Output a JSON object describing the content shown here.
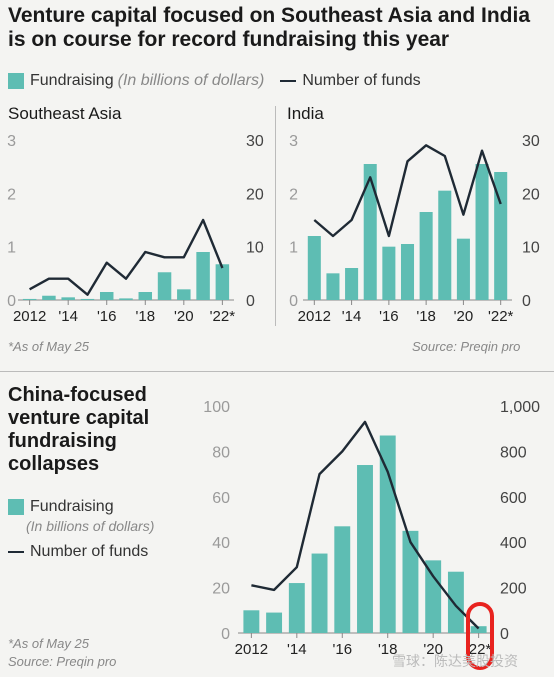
{
  "headline": "Venture capital focused on Southeast Asia and India is on course for record fundraising this year",
  "legend": {
    "fundraising": "Fundraising",
    "fundraising_unit": "(In billions of dollars)",
    "funds": "Number of funds"
  },
  "colors": {
    "bar": "#5ebdb3",
    "line": "#1f2a35",
    "axis": "#888888",
    "highlight": "#e8231f"
  },
  "top_notes": {
    "as_of": "*As of May 25",
    "source": "Source: Preqin pro"
  },
  "china": {
    "title": "China-focused venture capital fundraising collapses",
    "as_of": "*As of May 25",
    "source": "Source: Preqin pro"
  },
  "watermark": "雪球：陈达美股投资",
  "chart_data": [
    {
      "type": "bar",
      "title": "Southeast Asia",
      "x": [
        2012,
        2013,
        2014,
        2015,
        2016,
        2017,
        2018,
        2019,
        2020,
        2021,
        2022
      ],
      "x_tick_labels": [
        "2012",
        "'14",
        "'16",
        "'18",
        "'20",
        "'22*"
      ],
      "left_axis": {
        "range": [
          0,
          3
        ],
        "ticks": [
          "0",
          "1",
          "2",
          "3"
        ]
      },
      "right_axis": {
        "range": [
          0,
          30
        ],
        "ticks": [
          "0",
          "10",
          "20",
          "30"
        ]
      },
      "series": [
        {
          "name": "Fundraising",
          "kind": "bar",
          "axis": "left",
          "values": [
            0.02,
            0.08,
            0.05,
            0.02,
            0.15,
            0.03,
            0.15,
            0.52,
            0.2,
            0.9,
            0.67
          ]
        },
        {
          "name": "Number of funds",
          "kind": "line",
          "axis": "right",
          "values": [
            2,
            4,
            4,
            1,
            7,
            4,
            9,
            8,
            8,
            15,
            6
          ]
        }
      ]
    },
    {
      "type": "bar",
      "title": "India",
      "x": [
        2012,
        2013,
        2014,
        2015,
        2016,
        2017,
        2018,
        2019,
        2020,
        2021,
        2022
      ],
      "x_tick_labels": [
        "2012",
        "'14",
        "'16",
        "'18",
        "'20",
        "'22*"
      ],
      "left_axis": {
        "range": [
          0,
          3
        ],
        "ticks": [
          "0",
          "1",
          "2",
          "3"
        ]
      },
      "right_axis": {
        "range": [
          0,
          30
        ],
        "ticks": [
          "0",
          "10",
          "20",
          "30"
        ]
      },
      "series": [
        {
          "name": "Fundraising",
          "kind": "bar",
          "axis": "left",
          "values": [
            1.2,
            0.5,
            0.6,
            2.55,
            1.0,
            1.05,
            1.65,
            2.05,
            1.15,
            2.55,
            2.4
          ]
        },
        {
          "name": "Number of funds",
          "kind": "line",
          "axis": "right",
          "values": [
            15,
            12,
            15,
            23,
            12,
            26,
            29,
            27,
            16,
            28,
            18
          ]
        }
      ]
    },
    {
      "type": "bar",
      "title": "",
      "x": [
        2012,
        2013,
        2014,
        2015,
        2016,
        2017,
        2018,
        2019,
        2020,
        2021,
        2022
      ],
      "x_tick_labels": [
        "2012",
        "'14",
        "'16",
        "'18",
        "'20",
        "'22*"
      ],
      "left_axis": {
        "range": [
          0,
          100
        ],
        "ticks": [
          "0",
          "20",
          "40",
          "60",
          "80",
          "100"
        ]
      },
      "right_axis": {
        "range": [
          0,
          1000
        ],
        "ticks": [
          "0",
          "200",
          "400",
          "600",
          "800",
          "1,000"
        ]
      },
      "series": [
        {
          "name": "Fundraising",
          "kind": "bar",
          "axis": "left",
          "values": [
            10,
            9,
            22,
            35,
            47,
            74,
            87,
            45,
            32,
            27,
            3
          ]
        },
        {
          "name": "Number of funds",
          "kind": "line",
          "axis": "right",
          "values": [
            210,
            190,
            290,
            700,
            800,
            930,
            710,
            400,
            250,
            120,
            20
          ]
        }
      ]
    }
  ]
}
